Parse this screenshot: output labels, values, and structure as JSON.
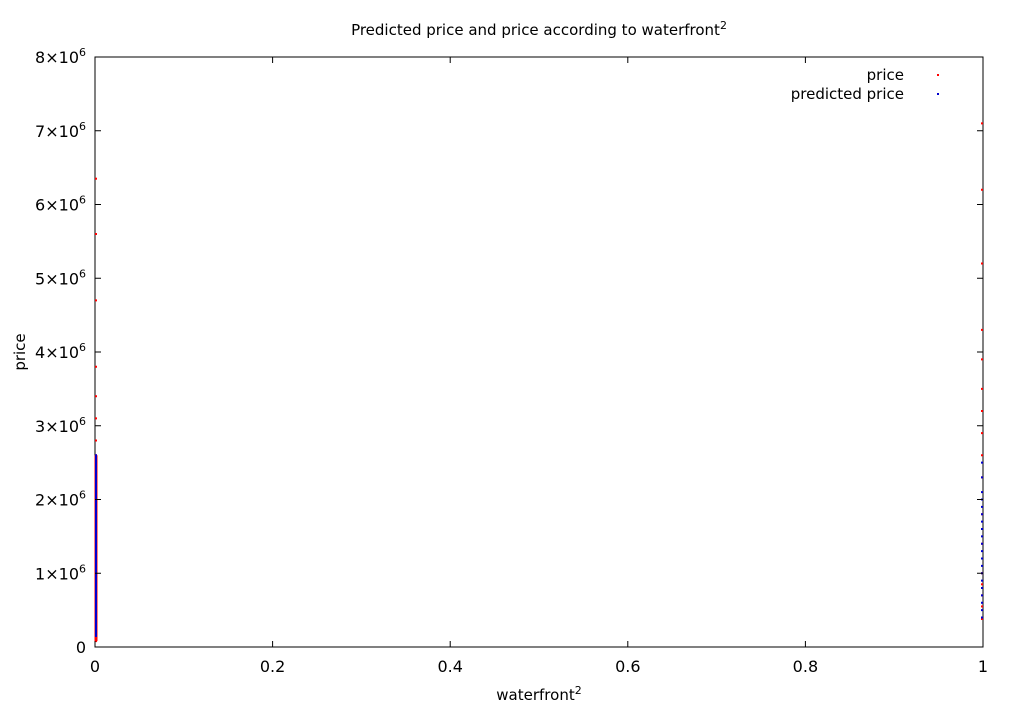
{
  "chart_data": {
    "type": "scatter",
    "title": "Predicted price and price according to waterfront",
    "title_superscript": "2",
    "xlabel": "waterfront",
    "xlabel_superscript": "2",
    "ylabel": "price",
    "xlim": [
      0,
      1
    ],
    "ylim": [
      0,
      8000000
    ],
    "x_ticks": [
      {
        "value": 0,
        "label": "0"
      },
      {
        "value": 0.2,
        "label": "0.2"
      },
      {
        "value": 0.4,
        "label": "0.4"
      },
      {
        "value": 0.6,
        "label": "0.6"
      },
      {
        "value": 0.8,
        "label": "0.8"
      },
      {
        "value": 1,
        "label": "1"
      }
    ],
    "y_ticks": [
      {
        "value": 0,
        "label": "0",
        "exp": ""
      },
      {
        "value": 1000000,
        "label": "1×10",
        "exp": "6"
      },
      {
        "value": 2000000,
        "label": "2×10",
        "exp": "6"
      },
      {
        "value": 3000000,
        "label": "3×10",
        "exp": "6"
      },
      {
        "value": 4000000,
        "label": "4×10",
        "exp": "6"
      },
      {
        "value": 5000000,
        "label": "5×10",
        "exp": "6"
      },
      {
        "value": 6000000,
        "label": "6×10",
        "exp": "6"
      },
      {
        "value": 7000000,
        "label": "7×10",
        "exp": "6"
      },
      {
        "value": 8000000,
        "label": "8×10",
        "exp": "6"
      }
    ],
    "grid": false,
    "legend_position": "top-right",
    "series": [
      {
        "name": "price",
        "color": "#ff0000",
        "x": [
          0,
          0,
          0,
          0,
          0,
          0,
          0,
          0,
          0,
          0,
          0,
          0,
          0,
          0,
          0,
          0,
          0,
          0,
          0,
          0,
          0,
          0,
          0,
          0,
          0,
          0,
          0,
          0,
          0,
          0,
          0,
          0,
          1,
          1,
          1,
          1,
          1,
          1,
          1,
          1,
          1,
          1,
          1,
          1,
          1,
          1,
          1,
          1,
          1,
          1,
          1,
          1
        ],
        "y": [
          80000,
          100000,
          120000,
          150000,
          180000,
          200000,
          250000,
          300000,
          350000,
          400000,
          450000,
          500000,
          600000,
          700000,
          800000,
          900000,
          1000000,
          1200000,
          1400000,
          1600000,
          1800000,
          2000000,
          2200000,
          2400000,
          2600000,
          2800000,
          3100000,
          3400000,
          3800000,
          4700000,
          5600000,
          6350000,
          380000,
          550000,
          700000,
          850000,
          1000000,
          1200000,
          1400000,
          1600000,
          1800000,
          2000000,
          2300000,
          2600000,
          2900000,
          3200000,
          3500000,
          3900000,
          4300000,
          5200000,
          6200000,
          7100000
        ]
      },
      {
        "name": "predicted price",
        "color": "#0000cc",
        "x": [
          0,
          0,
          0,
          0,
          0,
          0,
          0,
          0,
          0,
          0,
          0,
          0,
          0,
          0,
          0,
          0,
          0,
          0,
          0,
          0,
          0,
          0,
          0,
          0,
          0,
          0,
          0,
          0,
          0,
          0,
          1,
          1,
          1,
          1,
          1,
          1,
          1,
          1,
          1,
          1,
          1,
          1,
          1,
          1,
          1,
          1,
          1,
          1,
          1,
          1
        ],
        "y": [
          150000,
          200000,
          250000,
          300000,
          350000,
          400000,
          450000,
          500000,
          550000,
          600000,
          650000,
          700000,
          750000,
          800000,
          850000,
          900000,
          950000,
          1000000,
          1100000,
          1200000,
          1300000,
          1400000,
          1500000,
          1600000,
          1700000,
          1800000,
          2000000,
          2200000,
          2400000,
          2600000,
          400000,
          500000,
          600000,
          700000,
          800000,
          900000,
          1000000,
          1100000,
          1200000,
          1300000,
          1400000,
          1500000,
          1600000,
          1700000,
          1800000,
          1900000,
          2000000,
          2100000,
          2300000,
          2500000
        ]
      }
    ]
  }
}
